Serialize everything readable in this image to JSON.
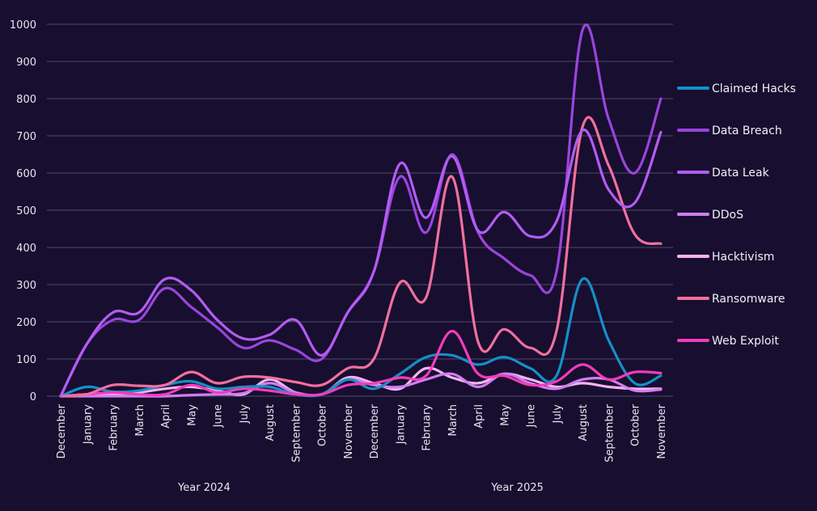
{
  "chart_data": {
    "type": "line",
    "title": "",
    "xlabel": "",
    "ylabel": "",
    "ylim": [
      0,
      1000
    ],
    "yticks": [
      "0",
      "100",
      "200",
      "300",
      "400",
      "500",
      "600",
      "700",
      "800",
      "900",
      "1000"
    ],
    "grid": true,
    "legend_position": "right",
    "categories": [
      "December",
      "January",
      "February",
      "March",
      "April",
      "May",
      "June",
      "July",
      "August",
      "September",
      "October",
      "November",
      "December",
      "January",
      "February",
      "March",
      "April",
      "May",
      "June",
      "July",
      "August",
      "September",
      "October",
      "November"
    ],
    "groups": [
      {
        "label": "Year 2024",
        "start": 0,
        "end": 11
      },
      {
        "label": "Year 2025",
        "start": 12,
        "end": 23
      }
    ],
    "series": [
      {
        "name": "Claimed Hacks",
        "color": "#1490c8",
        "values": [
          0,
          25,
          12,
          15,
          30,
          40,
          20,
          25,
          25,
          5,
          5,
          45,
          20,
          60,
          105,
          110,
          85,
          105,
          75,
          55,
          315,
          150,
          35,
          55
        ]
      },
      {
        "name": "Data Breach",
        "color": "#9a44de",
        "values": [
          0,
          140,
          205,
          205,
          290,
          240,
          185,
          130,
          150,
          125,
          100,
          225,
          335,
          590,
          440,
          650,
          440,
          370,
          325,
          335,
          985,
          745,
          600,
          800
        ]
      },
      {
        "name": "Data Leak",
        "color": "#b25cf4",
        "values": [
          0,
          140,
          225,
          225,
          315,
          285,
          205,
          155,
          165,
          205,
          110,
          225,
          335,
          625,
          480,
          645,
          445,
          495,
          430,
          470,
          715,
          555,
          520,
          710
        ]
      },
      {
        "name": "DDoS",
        "color": "#cf7ef0",
        "values": [
          0,
          0,
          0,
          0,
          0,
          3,
          5,
          8,
          35,
          10,
          5,
          45,
          30,
          25,
          45,
          60,
          25,
          60,
          35,
          20,
          45,
          45,
          15,
          18
        ]
      },
      {
        "name": "Hacktivism",
        "color": "#f6b3f2",
        "values": [
          0,
          5,
          5,
          10,
          20,
          25,
          15,
          5,
          45,
          10,
          5,
          50,
          35,
          20,
          75,
          50,
          35,
          60,
          45,
          25,
          35,
          25,
          20,
          20
        ]
      },
      {
        "name": "Ransomware",
        "color": "#f0709e",
        "values": [
          0,
          5,
          30,
          28,
          30,
          65,
          35,
          52,
          50,
          38,
          30,
          75,
          100,
          305,
          265,
          590,
          145,
          180,
          130,
          175,
          725,
          620,
          435,
          410
        ]
      },
      {
        "name": "Web Exploit",
        "color": "#f23cbb",
        "values": [
          0,
          5,
          10,
          5,
          5,
          30,
          10,
          20,
          15,
          5,
          5,
          30,
          35,
          50,
          55,
          175,
          60,
          55,
          30,
          40,
          85,
          45,
          65,
          62
        ]
      }
    ]
  }
}
